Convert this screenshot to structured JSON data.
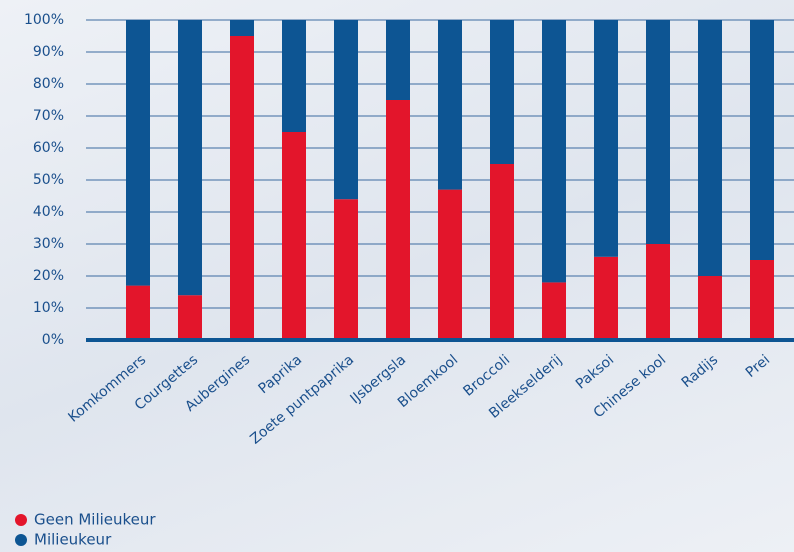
{
  "chart_data": {
    "type": "stacked_bar",
    "categories": [
      "Komkommers",
      "Courgettes",
      "Aubergines",
      "Paprika",
      "Zoete puntpaprika",
      "IJsbergsla",
      "Bloemkool",
      "Broccoli",
      "Bleekselderij",
      "Paksoi",
      "Chinese kool",
      "Radijs",
      "Prei"
    ],
    "series": [
      {
        "name": "Geen Milieukeur",
        "color": "#e3152b",
        "values": [
          17,
          14,
          95,
          65,
          44,
          75,
          47,
          55,
          18,
          26,
          30,
          20,
          25
        ]
      },
      {
        "name": "Milieukeur",
        "color": "#0d5593",
        "values": [
          83,
          86,
          5,
          35,
          56,
          25,
          53,
          45,
          82,
          74,
          70,
          80,
          75
        ]
      }
    ],
    "ylim": [
      0,
      100
    ],
    "yticks": [
      {
        "value": 0,
        "label": "0%"
      },
      {
        "value": 10,
        "label": "10%"
      },
      {
        "value": 20,
        "label": "20%"
      },
      {
        "value": 30,
        "label": "30%"
      },
      {
        "value": 40,
        "label": "40%"
      },
      {
        "value": 50,
        "label": "50%"
      },
      {
        "value": 60,
        "label": "60%"
      },
      {
        "value": 70,
        "label": "70%"
      },
      {
        "value": 80,
        "label": "80%"
      },
      {
        "value": 90,
        "label": "90%"
      },
      {
        "value": 100,
        "label": "100%"
      }
    ],
    "grid": true
  }
}
